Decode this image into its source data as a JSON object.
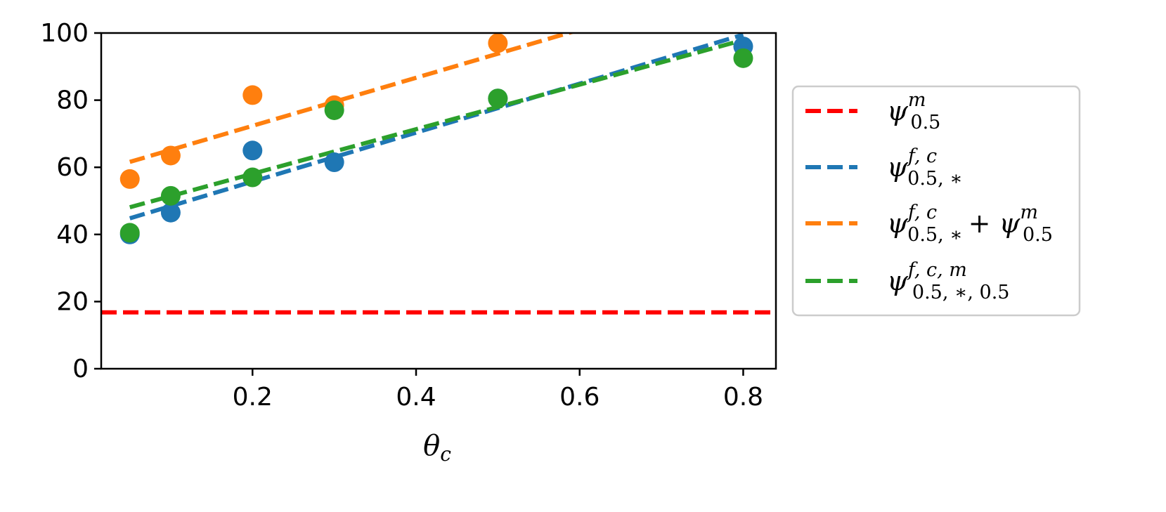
{
  "chart_data": {
    "type": "scatter",
    "xlabel": "θc",
    "ylabel": "",
    "xlim": [
      0.015,
      0.84
    ],
    "ylim": [
      0,
      100
    ],
    "xticks": [
      "0.2",
      "0.4",
      "0.6",
      "0.8"
    ],
    "yticks": [
      "0",
      "20",
      "40",
      "60",
      "80",
      "100"
    ],
    "grid": false,
    "legend_position": "outside right",
    "reference_lines": [
      {
        "key": "psi_m",
        "color": "#ff0000",
        "style": "dashed",
        "y": 16.8
      }
    ],
    "series": [
      {
        "key": "psi_fc",
        "color": "#1f77b4",
        "x": [
          0.05,
          0.1,
          0.2,
          0.3,
          0.5,
          0.8
        ],
        "y": [
          40,
          46.5,
          65,
          61.5,
          80.5,
          96
        ],
        "fit": {
          "x": [
            0.05,
            0.8
          ],
          "y": [
            44.8,
            99.5
          ]
        }
      },
      {
        "key": "psi_fc_plus_m",
        "color": "#ff7f0e",
        "x": [
          0.05,
          0.1,
          0.2,
          0.3,
          0.5
        ],
        "y": [
          56.5,
          63.5,
          81.5,
          78.5,
          97
        ],
        "fit": {
          "x": [
            0.05,
            0.6
          ],
          "y": [
            61.6,
            101.0
          ]
        }
      },
      {
        "key": "psi_fcm",
        "color": "#2ca02c",
        "x": [
          0.05,
          0.1,
          0.2,
          0.3,
          0.5,
          0.8
        ],
        "y": [
          40.5,
          51.5,
          57,
          77,
          80.5,
          92.5
        ],
        "fit": {
          "x": [
            0.05,
            0.8
          ],
          "y": [
            48.1,
            97.9
          ]
        }
      }
    ],
    "legend": [
      {
        "key": "psi_m",
        "color": "#ff0000",
        "label": "ψ^m_0.5"
      },
      {
        "key": "psi_fc",
        "color": "#1f77b4",
        "label": "ψ^{f,c}_{0.5,*}"
      },
      {
        "key": "psi_fc_plus_m",
        "color": "#ff7f0e",
        "label": "ψ^{f,c}_{0.5,*} + ψ^m_0.5"
      },
      {
        "key": "psi_fcm",
        "color": "#2ca02c",
        "label": "ψ^{f,c,m}_{0.5,*,0.5}"
      }
    ]
  }
}
